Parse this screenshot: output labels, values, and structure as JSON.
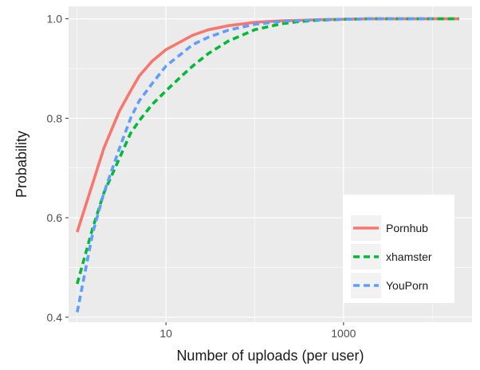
{
  "chart_data": {
    "type": "line",
    "title": "",
    "xlabel": "Number of uploads (per user)",
    "ylabel": "Probability",
    "x_scale": "log10",
    "xlim": [
      0.8,
      28000
    ],
    "ylim": [
      0.39,
      1.025
    ],
    "x_ticks": [
      {
        "value": 10,
        "label": "10"
      },
      {
        "value": 1000,
        "label": "1000"
      }
    ],
    "y_ticks": [
      {
        "value": 0.4,
        "label": "0.4"
      },
      {
        "value": 0.6,
        "label": "0.6"
      },
      {
        "value": 0.8,
        "label": "0.8"
      },
      {
        "value": 1.0,
        "label": "1.0"
      }
    ],
    "grid": true,
    "legend_position": "bottom-right",
    "series": [
      {
        "name": "Pornhub",
        "color": "#f8766d",
        "dash": "solid",
        "points": [
          [
            1,
            0.571
          ],
          [
            1.5,
            0.67
          ],
          [
            2,
            0.74
          ],
          [
            3,
            0.815
          ],
          [
            4,
            0.855
          ],
          [
            5,
            0.885
          ],
          [
            7,
            0.915
          ],
          [
            10,
            0.938
          ],
          [
            15,
            0.955
          ],
          [
            20,
            0.967
          ],
          [
            30,
            0.978
          ],
          [
            50,
            0.986
          ],
          [
            100,
            0.993
          ],
          [
            200,
            0.996
          ],
          [
            500,
            0.998
          ],
          [
            1000,
            0.999
          ],
          [
            2000,
            1.0
          ],
          [
            5000,
            1.0
          ],
          [
            10000,
            1.0
          ],
          [
            20000,
            1.0
          ]
        ]
      },
      {
        "name": "xhamster",
        "color": "#00ba38",
        "dash": "dashed",
        "points": [
          [
            1,
            0.467
          ],
          [
            1.5,
            0.58
          ],
          [
            2,
            0.65
          ],
          [
            3,
            0.72
          ],
          [
            4,
            0.77
          ],
          [
            5,
            0.795
          ],
          [
            7,
            0.828
          ],
          [
            10,
            0.855
          ],
          [
            15,
            0.885
          ],
          [
            20,
            0.905
          ],
          [
            30,
            0.93
          ],
          [
            50,
            0.955
          ],
          [
            100,
            0.978
          ],
          [
            200,
            0.99
          ],
          [
            300,
            0.994
          ],
          [
            500,
            0.997
          ],
          [
            1000,
            0.999
          ],
          [
            2000,
            1.0
          ],
          [
            5000,
            1.0
          ],
          [
            20000,
            1.0
          ]
        ]
      },
      {
        "name": "YouPorn",
        "color": "#619cff",
        "dash": "dashed",
        "points": [
          [
            1,
            0.41
          ],
          [
            1.5,
            0.57
          ],
          [
            2,
            0.65
          ],
          [
            3,
            0.74
          ],
          [
            4,
            0.8
          ],
          [
            5,
            0.835
          ],
          [
            7,
            0.87
          ],
          [
            10,
            0.905
          ],
          [
            15,
            0.93
          ],
          [
            20,
            0.948
          ],
          [
            30,
            0.963
          ],
          [
            50,
            0.977
          ],
          [
            100,
            0.989
          ],
          [
            200,
            0.995
          ],
          [
            500,
            0.998
          ],
          [
            1000,
            0.999
          ],
          [
            2000,
            1.0
          ],
          [
            5000,
            1.0
          ],
          [
            10000,
            1.0
          ]
        ]
      }
    ]
  }
}
